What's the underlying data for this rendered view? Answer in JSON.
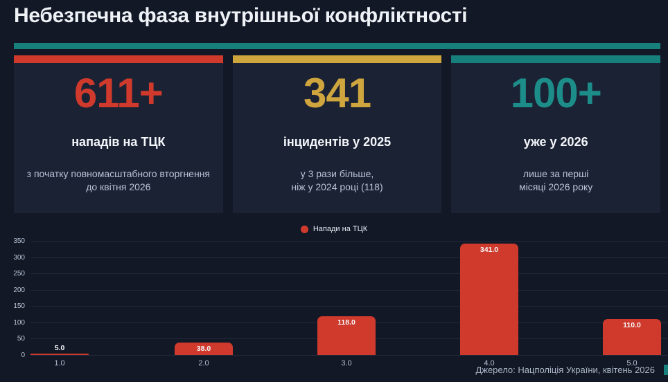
{
  "title": "Небезпечна фаза внутрішньої конфліктності",
  "accent_colors": {
    "red": "#cf3a2c",
    "gold": "#cfa53e",
    "teal": "#17807d",
    "teal_bright": "#1d8d8a",
    "background": "#121826",
    "card_background": "#1b2234"
  },
  "cards": [
    {
      "value": "611+",
      "color": "#cf3a2c",
      "label": "нападів на ТЦК",
      "desc": [
        "з початку повномасштабного вторгнення",
        "до квітня 2026"
      ]
    },
    {
      "value": "341",
      "color": "#cfa53e",
      "label": "інцидентів у 2025",
      "desc": [
        "у 3 рази більше,",
        "ніж у 2024 році (118)"
      ]
    },
    {
      "value": "100+",
      "color": "#17807d",
      "value_color": "#1d8d8a",
      "label": "уже у 2026",
      "desc": [
        "лише за перші",
        "місяці 2026 року"
      ]
    }
  ],
  "chart_data": {
    "type": "bar",
    "title": "",
    "xlabel": "",
    "ylabel": "",
    "categories": [
      "1.0",
      "2.0",
      "3.0",
      "4.0",
      "5.0"
    ],
    "values": [
      5.0,
      38.0,
      118.0,
      341.0,
      110.0
    ],
    "value_labels": [
      "5.0",
      "38.0",
      "118.0",
      "341.0",
      "110.0"
    ],
    "series_name": "Напади на ТЦК",
    "bar_color": "#cf3a2c",
    "ylim": [
      0,
      350
    ],
    "yticks": [
      0,
      50,
      100,
      150,
      200,
      250,
      300,
      350
    ],
    "grid": true,
    "legend_position": "top-center",
    "legend": [
      {
        "label": "Напади на ТЦК",
        "color": "#cf3a2c"
      }
    ]
  },
  "source": "Джерело: Нацполіція України, квітень 2026"
}
